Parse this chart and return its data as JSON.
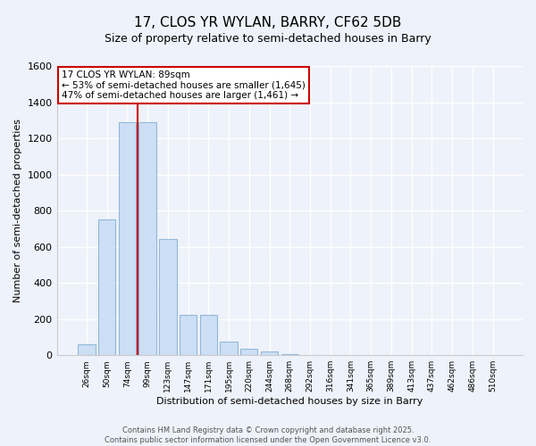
{
  "title1": "17, CLOS YR WYLAN, BARRY, CF62 5DB",
  "title2": "Size of property relative to semi-detached houses in Barry",
  "xlabel": "Distribution of semi-detached houses by size in Barry",
  "ylabel": "Number of semi-detached properties",
  "bar_color": "#ccdff5",
  "bar_edge_color": "#93b8d8",
  "background_color": "#eef2fa",
  "grid_color": "#ffffff",
  "categories": [
    "26sqm",
    "50sqm",
    "74sqm",
    "99sqm",
    "123sqm",
    "147sqm",
    "171sqm",
    "195sqm",
    "220sqm",
    "244sqm",
    "268sqm",
    "292sqm",
    "316sqm",
    "341sqm",
    "365sqm",
    "389sqm",
    "413sqm",
    "437sqm",
    "462sqm",
    "486sqm",
    "510sqm"
  ],
  "values": [
    60,
    750,
    1290,
    1290,
    645,
    225,
    225,
    75,
    35,
    20,
    5,
    3,
    1,
    0,
    0,
    0,
    0,
    0,
    0,
    0,
    0
  ],
  "ylim": [
    0,
    1600
  ],
  "yticks": [
    0,
    200,
    400,
    600,
    800,
    1000,
    1200,
    1400,
    1600
  ],
  "vline_x_idx": 2.5,
  "annotation_text": "17 CLOS YR WYLAN: 89sqm\n← 53% of semi-detached houses are smaller (1,645)\n47% of semi-detached houses are larger (1,461) →",
  "annotation_box_color": "#ffffff",
  "annotation_box_edge": "#cc0000",
  "footer1": "Contains HM Land Registry data © Crown copyright and database right 2025.",
  "footer2": "Contains public sector information licensed under the Open Government Licence v3.0."
}
